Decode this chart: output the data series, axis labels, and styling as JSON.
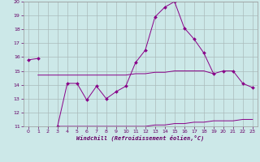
{
  "x": [
    0,
    1,
    2,
    3,
    4,
    5,
    6,
    7,
    8,
    9,
    10,
    11,
    12,
    13,
    14,
    15,
    16,
    17,
    18,
    19,
    20,
    21,
    22,
    23
  ],
  "line1_y": [
    15.8,
    15.9,
    null,
    11.0,
    14.1,
    14.1,
    12.9,
    13.9,
    13.0,
    13.5,
    13.9,
    15.6,
    16.5,
    18.9,
    19.6,
    20.0,
    18.1,
    17.3,
    16.3,
    14.8,
    15.0,
    15.0,
    14.1,
    13.8
  ],
  "line2_x": [
    3,
    4,
    5,
    6,
    7,
    8,
    9,
    10,
    11,
    12,
    13,
    14,
    15,
    16,
    17,
    18,
    19,
    20,
    21,
    22,
    23
  ],
  "line2_y": [
    11.0,
    11.0,
    11.0,
    11.0,
    11.0,
    11.0,
    11.0,
    11.0,
    11.0,
    11.0,
    11.1,
    11.1,
    11.2,
    11.2,
    11.3,
    11.3,
    11.4,
    11.4,
    11.4,
    11.5,
    11.5
  ],
  "line3_x": [
    1,
    2,
    3,
    4,
    5,
    6,
    7,
    8,
    9,
    10,
    11,
    12,
    13,
    14,
    15,
    16,
    17,
    18,
    19
  ],
  "line3_y": [
    14.7,
    14.7,
    14.7,
    14.7,
    14.7,
    14.7,
    14.7,
    14.7,
    14.7,
    14.7,
    14.8,
    14.8,
    14.9,
    14.9,
    15.0,
    15.0,
    15.0,
    15.0,
    14.8
  ],
  "background_color": "#cce8e8",
  "line_color": "#880088",
  "grid_color": "#aabbbb",
  "xlabel": "Windchill (Refroidissement éolien,°C)",
  "ylim": [
    11,
    20
  ],
  "xlim": [
    -0.5,
    23.5
  ],
  "yticks": [
    11,
    12,
    13,
    14,
    15,
    16,
    17,
    18,
    19,
    20
  ],
  "xticks": [
    0,
    1,
    2,
    3,
    4,
    5,
    6,
    7,
    8,
    9,
    10,
    11,
    12,
    13,
    14,
    15,
    16,
    17,
    18,
    19,
    20,
    21,
    22,
    23
  ]
}
